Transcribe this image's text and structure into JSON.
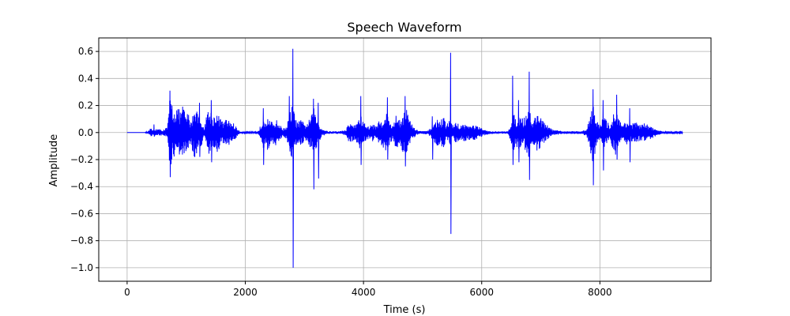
{
  "chart_data": {
    "type": "line",
    "title": "Speech Waveform",
    "xlabel": "Time (s)",
    "ylabel": "Amplitude",
    "xlim": [
      -480,
      9880
    ],
    "ylim": [
      -1.1,
      0.7
    ],
    "grid": true,
    "x_ticks": [
      0,
      2000,
      4000,
      6000,
      8000
    ],
    "x_tick_labels": [
      "0",
      "2000",
      "4000",
      "6000",
      "8000"
    ],
    "y_ticks": [
      -1.0,
      -0.8,
      -0.6,
      -0.4,
      -0.2,
      0.0,
      0.2,
      0.4,
      0.6
    ],
    "y_tick_labels": [
      "−1.0",
      "−0.8",
      "−0.6",
      "−0.4",
      "−0.2",
      "0.0",
      "0.2",
      "0.4",
      "0.6"
    ],
    "series": [
      {
        "color": "#0000ff",
        "x_start": 0,
        "x_end": 9400,
        "envelope_points": [
          [
            0,
            0.0
          ],
          [
            300,
            0.0
          ],
          [
            380,
            0.02
          ],
          [
            400,
            0.04
          ],
          [
            420,
            0.02
          ],
          [
            500,
            0.03
          ],
          [
            600,
            0.02
          ],
          [
            680,
            0.04
          ],
          [
            700,
            0.12
          ],
          [
            720,
            0.25
          ],
          [
            740,
            0.31
          ],
          [
            760,
            0.22
          ],
          [
            800,
            0.18
          ],
          [
            840,
            0.2
          ],
          [
            900,
            0.16
          ],
          [
            940,
            0.22
          ],
          [
            980,
            0.15
          ],
          [
            1040,
            0.14
          ],
          [
            1080,
            0.08
          ],
          [
            1120,
            0.17
          ],
          [
            1160,
            0.22
          ],
          [
            1200,
            0.15
          ],
          [
            1260,
            0.1
          ],
          [
            1300,
            0.02
          ],
          [
            1340,
            0.14
          ],
          [
            1380,
            0.18
          ],
          [
            1420,
            0.16
          ],
          [
            1460,
            0.12
          ],
          [
            1500,
            0.16
          ],
          [
            1560,
            0.12
          ],
          [
            1620,
            0.08
          ],
          [
            1680,
            0.1
          ],
          [
            1740,
            0.09
          ],
          [
            1800,
            0.07
          ],
          [
            1900,
            0.01
          ],
          [
            2000,
            0.005
          ],
          [
            2200,
            0.005
          ],
          [
            2270,
            0.06
          ],
          [
            2300,
            0.14
          ],
          [
            2340,
            0.1
          ],
          [
            2380,
            0.14
          ],
          [
            2420,
            0.08
          ],
          [
            2460,
            0.08
          ],
          [
            2520,
            0.1
          ],
          [
            2580,
            0.06
          ],
          [
            2640,
            0.03
          ],
          [
            2700,
            0.05
          ],
          [
            2750,
            0.14
          ],
          [
            2800,
            0.22
          ],
          [
            2850,
            0.1
          ],
          [
            2900,
            0.08
          ],
          [
            2950,
            0.1
          ],
          [
            3000,
            0.06
          ],
          [
            3060,
            0.08
          ],
          [
            3120,
            0.13
          ],
          [
            3160,
            0.18
          ],
          [
            3200,
            0.12
          ],
          [
            3260,
            0.06
          ],
          [
            3300,
            0.03
          ],
          [
            3400,
            0.01
          ],
          [
            3600,
            0.01
          ],
          [
            3700,
            0.02
          ],
          [
            3750,
            0.07
          ],
          [
            3800,
            0.08
          ],
          [
            3850,
            0.05
          ],
          [
            3900,
            0.1
          ],
          [
            3950,
            0.13
          ],
          [
            4000,
            0.08
          ],
          [
            4050,
            0.06
          ],
          [
            4100,
            0.04
          ],
          [
            4150,
            0.08
          ],
          [
            4200,
            0.05
          ],
          [
            4250,
            0.08
          ],
          [
            4320,
            0.1
          ],
          [
            4380,
            0.16
          ],
          [
            4420,
            0.12
          ],
          [
            4480,
            0.06
          ],
          [
            4520,
            0.08
          ],
          [
            4560,
            0.14
          ],
          [
            4620,
            0.1
          ],
          [
            4680,
            0.16
          ],
          [
            4720,
            0.2
          ],
          [
            4780,
            0.1
          ],
          [
            4820,
            0.06
          ],
          [
            4900,
            0.02
          ],
          [
            5000,
            0.01
          ],
          [
            5100,
            0.015
          ],
          [
            5180,
            0.06
          ],
          [
            5250,
            0.1
          ],
          [
            5300,
            0.09
          ],
          [
            5350,
            0.12
          ],
          [
            5400,
            0.06
          ],
          [
            5460,
            0.1
          ],
          [
            5520,
            0.06
          ],
          [
            5580,
            0.08
          ],
          [
            5640,
            0.05
          ],
          [
            5700,
            0.07
          ],
          [
            5760,
            0.06
          ],
          [
            5820,
            0.05
          ],
          [
            5880,
            0.06
          ],
          [
            5960,
            0.04
          ],
          [
            6050,
            0.02
          ],
          [
            6150,
            0.01
          ],
          [
            6300,
            0.008
          ],
          [
            6450,
            0.01
          ],
          [
            6500,
            0.1
          ],
          [
            6540,
            0.14
          ],
          [
            6580,
            0.1
          ],
          [
            6640,
            0.14
          ],
          [
            6700,
            0.1
          ],
          [
            6760,
            0.16
          ],
          [
            6800,
            0.2
          ],
          [
            6850,
            0.08
          ],
          [
            6900,
            0.12
          ],
          [
            6960,
            0.16
          ],
          [
            7020,
            0.1
          ],
          [
            7080,
            0.06
          ],
          [
            7140,
            0.05
          ],
          [
            7200,
            0.02
          ],
          [
            7400,
            0.01
          ],
          [
            7700,
            0.01
          ],
          [
            7780,
            0.03
          ],
          [
            7820,
            0.1
          ],
          [
            7880,
            0.26
          ],
          [
            7920,
            0.16
          ],
          [
            7960,
            0.08
          ],
          [
            8000,
            0.05
          ],
          [
            8040,
            0.1
          ],
          [
            8080,
            0.12
          ],
          [
            8120,
            0.08
          ],
          [
            8180,
            0.06
          ],
          [
            8230,
            0.14
          ],
          [
            8280,
            0.2
          ],
          [
            8320,
            0.1
          ],
          [
            8380,
            0.06
          ],
          [
            8440,
            0.1
          ],
          [
            8500,
            0.08
          ],
          [
            8560,
            0.07
          ],
          [
            8620,
            0.08
          ],
          [
            8680,
            0.06
          ],
          [
            8760,
            0.07
          ],
          [
            8840,
            0.05
          ],
          [
            8900,
            0.04
          ],
          [
            8960,
            0.02
          ],
          [
            9100,
            0.005
          ],
          [
            9400,
            0.005
          ]
        ],
        "spikes": [
          [
            450,
            0.06,
            -0.03
          ],
          [
            720,
            0.31,
            -0.33
          ],
          [
            1220,
            0.22,
            -0.18
          ],
          [
            1420,
            0.24,
            -0.22
          ],
          [
            2300,
            0.18,
            -0.24
          ],
          [
            2800,
            0.62,
            -1.0
          ],
          [
            2740,
            0.27,
            -0.1
          ],
          [
            3150,
            0.25,
            -0.42
          ],
          [
            3230,
            0.22,
            -0.34
          ],
          [
            3950,
            0.27,
            -0.24
          ],
          [
            4400,
            0.26,
            -0.2
          ],
          [
            4700,
            0.27,
            -0.25
          ],
          [
            5160,
            0.12,
            -0.2
          ],
          [
            5470,
            0.59,
            -0.75
          ],
          [
            6520,
            0.42,
            -0.24
          ],
          [
            6800,
            0.45,
            -0.35
          ],
          [
            6620,
            0.24,
            -0.22
          ],
          [
            7880,
            0.32,
            -0.39
          ],
          [
            8050,
            0.24,
            -0.28
          ],
          [
            8280,
            0.28,
            -0.2
          ],
          [
            8500,
            0.18,
            -0.22
          ]
        ]
      }
    ]
  }
}
